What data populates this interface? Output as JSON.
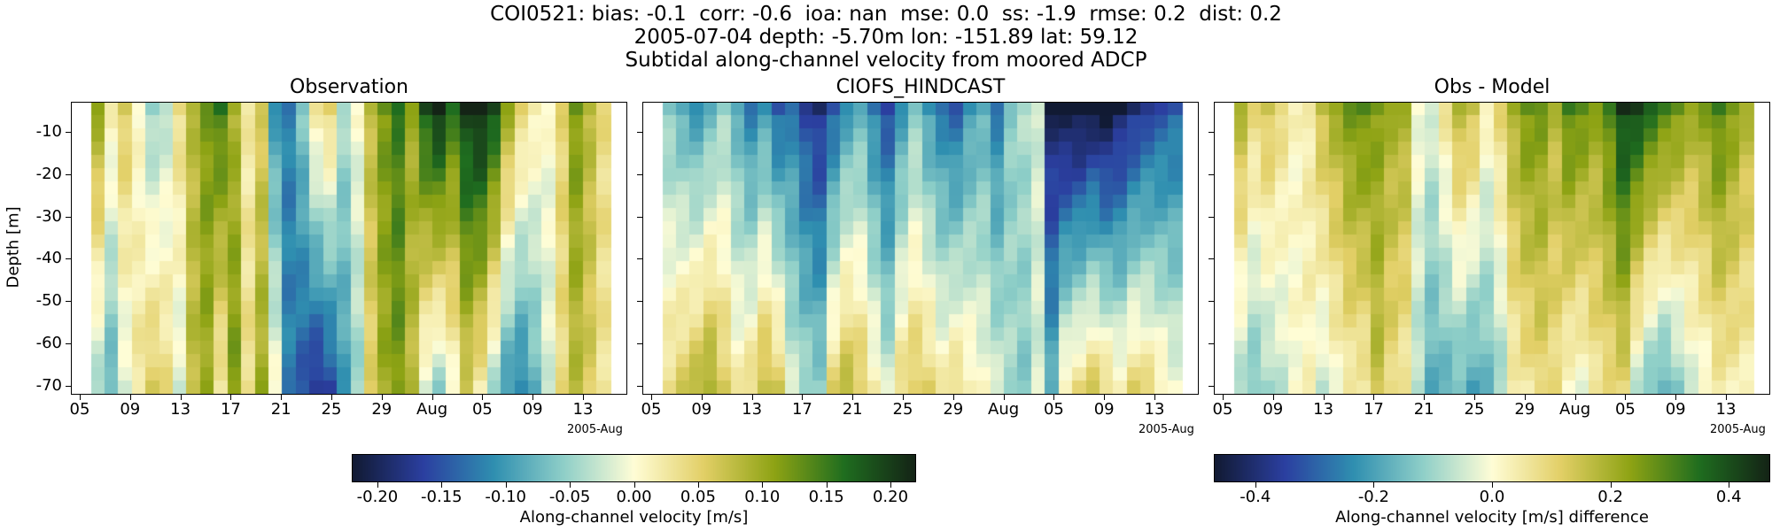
{
  "header": {
    "line1": "COI0521: bias: -0.1  corr: -0.6  ioa: nan  mse: 0.0  ss: -1.9  rmse: 0.2  dist: 0.2",
    "line2": "2005-07-04 depth: -5.70m lon: -151.89 lat: 59.12",
    "line3": "Subtidal along-channel velocity from moored ADCP"
  },
  "chart_data": [
    {
      "type": "heatmap",
      "title": "Observation",
      "ylabel": "Depth [m]",
      "xlabel": "",
      "x_offset_label": "2005-Aug",
      "x_ticks": [
        "05",
        "09",
        "13",
        "17",
        "21",
        "25",
        "29",
        "Aug",
        "05",
        "09",
        "13"
      ],
      "y_ticks": [
        "-10",
        "-20",
        "-30",
        "-40",
        "-50",
        "-60",
        "-70"
      ],
      "ylim": [
        -72,
        -3
      ],
      "colorbar": "shared_velocity",
      "x_dates": [
        "07-06",
        "07-07",
        "07-08",
        "07-09",
        "07-10",
        "07-11",
        "07-12",
        "07-13",
        "07-14",
        "07-15",
        "07-16",
        "07-17",
        "07-18",
        "07-19",
        "07-20",
        "07-21",
        "07-22",
        "07-23",
        "07-24",
        "07-25",
        "07-26",
        "07-27",
        "07-28",
        "07-29",
        "07-30",
        "07-31",
        "08-01",
        "08-02",
        "08-03",
        "08-04",
        "08-05",
        "08-06",
        "08-07",
        "08-08",
        "08-09",
        "08-10",
        "08-11",
        "08-12"
      ],
      "surface_values": [
        0.1,
        0.02,
        0.06,
        0.0,
        -0.05,
        -0.03,
        0.04,
        0.08,
        0.12,
        0.15,
        0.09,
        0.02,
        0.06,
        -0.1,
        -0.12,
        -0.06,
        0.03,
        0.05,
        -0.04,
        0.0,
        0.08,
        0.12,
        0.15,
        0.1,
        0.18,
        0.21,
        0.15,
        0.2,
        0.22,
        0.18,
        0.1,
        0.05,
        0.02,
        0.0,
        0.05,
        0.12,
        0.08,
        0.04
      ],
      "bottom_values": [
        -0.04,
        -0.08,
        -0.02,
        0.03,
        0.06,
        0.04,
        -0.02,
        0.08,
        0.1,
        0.02,
        0.12,
        0.04,
        0.1,
        0.0,
        -0.12,
        -0.15,
        -0.18,
        -0.16,
        -0.1,
        -0.05,
        0.05,
        0.1,
        0.12,
        0.08,
        -0.02,
        -0.05,
        0.0,
        0.06,
        0.02,
        -0.04,
        -0.1,
        -0.12,
        -0.08,
        -0.02,
        0.04,
        0.08,
        0.06,
        0.03
      ]
    },
    {
      "type": "heatmap",
      "title": "CIOFS_HINDCAST",
      "ylabel": "",
      "xlabel": "",
      "x_offset_label": "2005-Aug",
      "x_ticks": [
        "05",
        "09",
        "13",
        "17",
        "21",
        "25",
        "29",
        "Aug",
        "05",
        "09",
        "13"
      ],
      "y_ticks": [],
      "ylim": [
        -72,
        -3
      ],
      "colorbar": "shared_velocity",
      "x_dates": [
        "07-06",
        "07-07",
        "07-08",
        "07-09",
        "07-10",
        "07-11",
        "07-12",
        "07-13",
        "07-14",
        "07-15",
        "07-16",
        "07-17",
        "07-18",
        "07-19",
        "07-20",
        "07-21",
        "07-22",
        "07-23",
        "07-24",
        "07-25",
        "07-26",
        "07-27",
        "07-28",
        "07-29",
        "07-30",
        "07-31",
        "08-01",
        "08-02",
        "08-03",
        "08-04",
        "08-05",
        "08-06",
        "08-07",
        "08-08",
        "08-09",
        "08-10",
        "08-11",
        "08-12"
      ],
      "surface_values": [
        -0.06,
        -0.08,
        -0.1,
        -0.08,
        -0.05,
        -0.08,
        -0.12,
        -0.1,
        -0.14,
        -0.12,
        -0.16,
        -0.18,
        -0.14,
        -0.1,
        -0.08,
        -0.12,
        -0.15,
        -0.1,
        -0.06,
        -0.1,
        -0.12,
        -0.14,
        -0.1,
        -0.08,
        -0.12,
        -0.06,
        -0.04,
        -0.02,
        -0.2,
        -0.22,
        -0.22,
        -0.21,
        -0.22,
        -0.2,
        -0.18,
        -0.16,
        -0.15,
        -0.14
      ],
      "bottom_values": [
        0.04,
        0.06,
        0.08,
        0.1,
        0.06,
        0.02,
        0.04,
        0.08,
        0.06,
        -0.02,
        -0.04,
        -0.05,
        0.05,
        0.08,
        0.06,
        0.02,
        -0.02,
        0.04,
        0.06,
        0.05,
        0.02,
        0.04,
        0.02,
        0.0,
        -0.02,
        -0.04,
        -0.06,
        -0.02,
        -0.08,
        0.02,
        0.04,
        0.06,
        0.04,
        0.02,
        0.05,
        0.04,
        0.02,
        0.0
      ]
    },
    {
      "type": "heatmap",
      "title": "Obs - Model",
      "ylabel": "",
      "xlabel": "",
      "x_offset_label": "2005-Aug",
      "x_ticks": [
        "05",
        "09",
        "13",
        "17",
        "21",
        "25",
        "29",
        "Aug",
        "05",
        "09",
        "13"
      ],
      "y_ticks": [],
      "ylim": [
        -72,
        -3
      ],
      "colorbar": "difference",
      "x_dates": [
        "07-06",
        "07-07",
        "07-08",
        "07-09",
        "07-10",
        "07-11",
        "07-12",
        "07-13",
        "07-14",
        "07-15",
        "07-16",
        "07-17",
        "07-18",
        "07-19",
        "07-20",
        "07-21",
        "07-22",
        "07-23",
        "07-24",
        "07-25",
        "07-26",
        "07-27",
        "07-28",
        "07-29",
        "07-30",
        "07-31",
        "08-01",
        "08-02",
        "08-03",
        "08-04",
        "08-05",
        "08-06",
        "08-07",
        "08-08",
        "08-09",
        "08-10",
        "08-11",
        "08-12"
      ],
      "surface_values": [
        0.18,
        0.1,
        0.14,
        0.08,
        0.02,
        0.05,
        0.16,
        0.2,
        0.26,
        0.28,
        0.24,
        0.2,
        0.2,
        0.0,
        -0.04,
        0.06,
        0.18,
        0.15,
        0.02,
        0.1,
        0.2,
        0.26,
        0.25,
        0.18,
        0.3,
        0.27,
        0.22,
        0.3,
        0.42,
        0.4,
        0.34,
        0.3,
        0.26,
        0.2,
        0.24,
        0.3,
        0.24,
        0.18
      ],
      "bottom_values": [
        -0.08,
        -0.14,
        -0.1,
        -0.06,
        0.0,
        0.02,
        -0.06,
        0.0,
        0.04,
        0.04,
        0.16,
        0.09,
        0.05,
        -0.08,
        -0.18,
        -0.17,
        -0.16,
        -0.2,
        -0.16,
        -0.1,
        0.03,
        0.06,
        0.1,
        0.08,
        0.0,
        -0.01,
        0.06,
        0.08,
        0.1,
        -0.06,
        -0.14,
        -0.18,
        -0.12,
        -0.04,
        -0.01,
        0.04,
        0.04,
        0.03
      ]
    }
  ],
  "colorbars": {
    "shared_velocity": {
      "label": "Along-channel velocity [m/s]",
      "vmin": -0.22,
      "vmax": 0.22,
      "ticks": [
        "-0.20",
        "-0.15",
        "-0.10",
        "-0.05",
        "0.00",
        "0.05",
        "0.10",
        "0.15",
        "0.20"
      ],
      "tick_values": [
        -0.2,
        -0.15,
        -0.1,
        -0.05,
        0.0,
        0.05,
        0.1,
        0.15,
        0.2
      ]
    },
    "difference": {
      "label": "Along-channel velocity [m/s] difference",
      "vmin": -0.47,
      "vmax": 0.47,
      "ticks": [
        "-0.4",
        "-0.2",
        "0.0",
        "0.2",
        "0.4"
      ],
      "tick_values": [
        -0.4,
        -0.2,
        0.0,
        0.2,
        0.4
      ]
    }
  },
  "colormap": {
    "name": "cmocean delta",
    "stops": [
      "#111a33",
      "#2b3fa0",
      "#2f8fb0",
      "#8fcfc8",
      "#fffdd6",
      "#e2cf66",
      "#8ea314",
      "#1f6d1f",
      "#142416"
    ]
  }
}
